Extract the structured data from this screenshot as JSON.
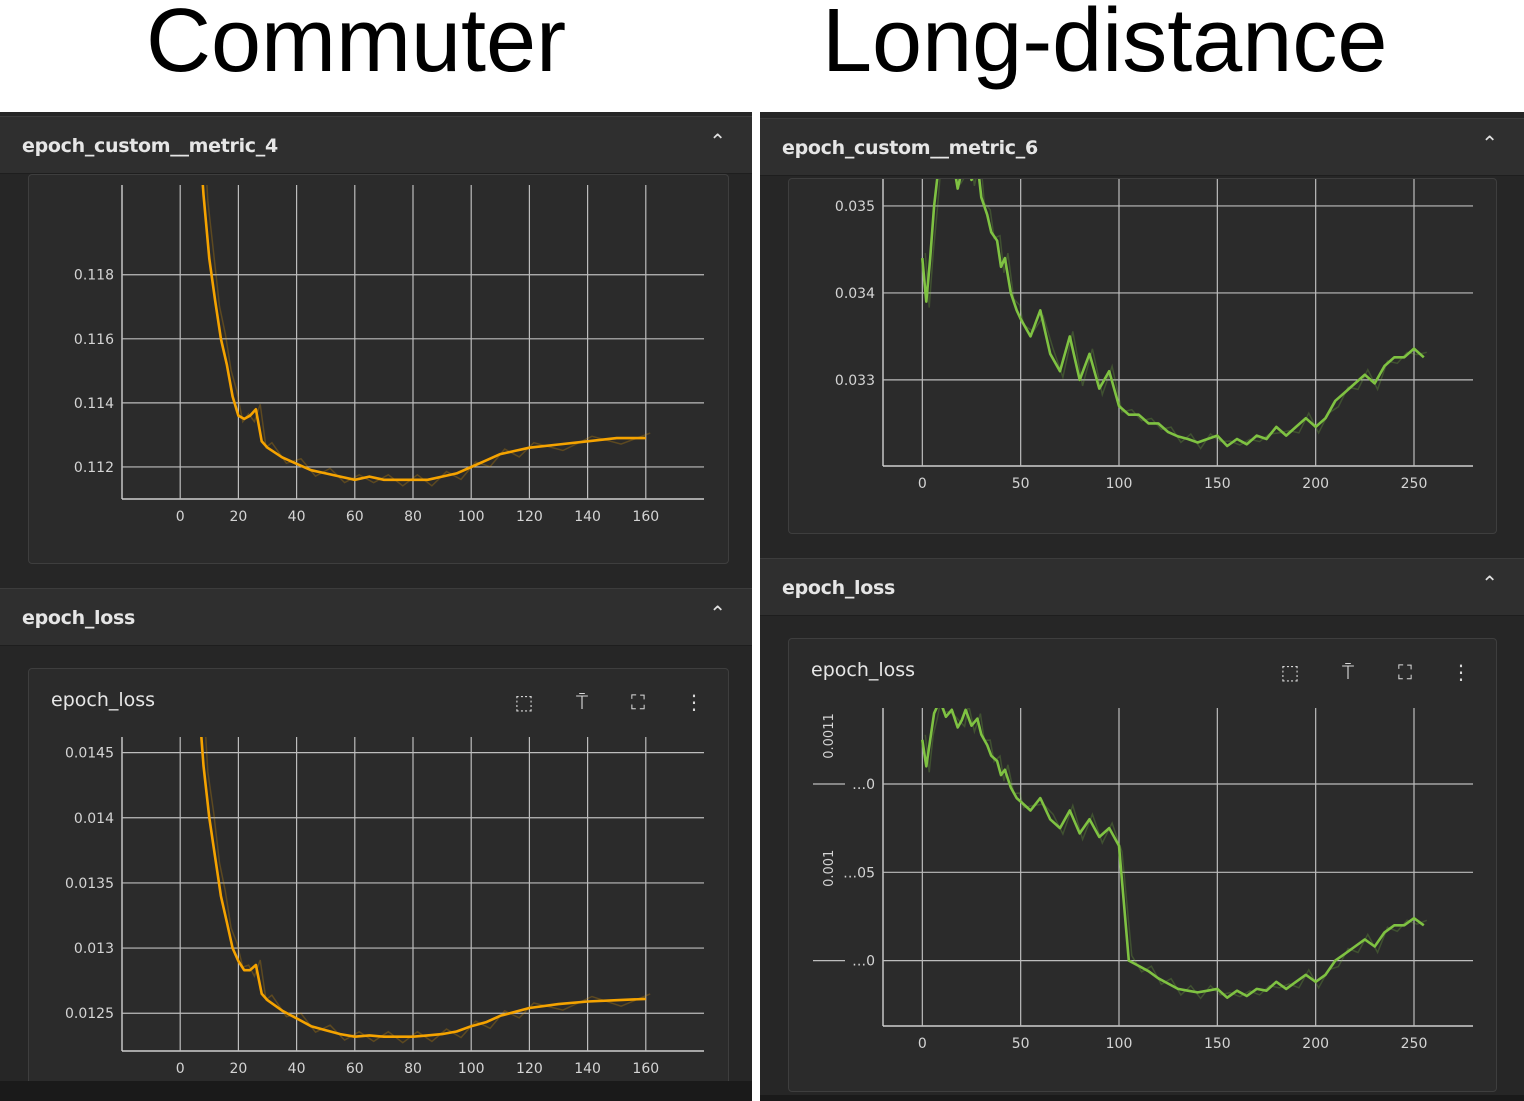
{
  "titles": {
    "left": "Commuter",
    "right": "Long-distance"
  },
  "icons": {
    "collapse": "chevron-up-icon",
    "fit": "fit-domain-icon",
    "pin": "pin-icon",
    "fullscreen": "fullscreen-icon",
    "more": "more-vert-icon"
  },
  "colors": {
    "commuter": "#f5a300",
    "long_distance": "#7fc242"
  },
  "left": {
    "metric_section": {
      "label": "epoch_custom__metric_4"
    },
    "loss_section": {
      "label": "epoch_loss"
    },
    "loss_card": {
      "title": "epoch_loss"
    }
  },
  "right": {
    "metric_section": {
      "label": "epoch_custom__metric_6"
    },
    "loss_section": {
      "label": "epoch_loss"
    },
    "loss_card": {
      "title": "epoch_loss"
    }
  },
  "chart_data": [
    {
      "type": "line",
      "id": "commuter-metric",
      "title": "epoch_custom__metric_4",
      "xlabel": "",
      "ylabel": "",
      "x_ticks": [
        "0",
        "20",
        "40",
        "60",
        "80",
        "100",
        "120",
        "140",
        "160"
      ],
      "y_ticks": [
        "0.112",
        "0.114",
        "0.116",
        "0.118"
      ],
      "xlim": [
        -20,
        180
      ],
      "ylim": [
        0.111,
        0.1208
      ],
      "color": "#f5a300",
      "grid": true,
      "series": [
        {
          "x": [
            7,
            8,
            10,
            12,
            14,
            16,
            18,
            20,
            22,
            24,
            26,
            28,
            30,
            35,
            40,
            45,
            50,
            55,
            60,
            65,
            70,
            75,
            80,
            85,
            90,
            95,
            100,
            105,
            110,
            115,
            120,
            130,
            140,
            150,
            160
          ],
          "y": [
            0.1218,
            0.1205,
            0.1185,
            0.1172,
            0.116,
            0.1152,
            0.1142,
            0.1136,
            0.1135,
            0.1136,
            0.1138,
            0.1128,
            0.1126,
            0.1123,
            0.1121,
            0.1119,
            0.1118,
            0.1117,
            0.1116,
            0.1117,
            0.1116,
            0.1116,
            0.1116,
            0.1116,
            0.1117,
            0.1118,
            0.112,
            0.1122,
            0.1124,
            0.1125,
            0.1126,
            0.1127,
            0.1128,
            0.1129,
            0.1129
          ]
        }
      ]
    },
    {
      "type": "line",
      "id": "commuter-loss",
      "title": "epoch_loss",
      "xlabel": "",
      "ylabel": "",
      "x_ticks": [
        "0",
        "20",
        "40",
        "60",
        "80",
        "100",
        "120",
        "140",
        "160"
      ],
      "y_ticks": [
        "0.0125",
        "0.013",
        "0.0135",
        "0.014",
        "0.0145"
      ],
      "xlim": [
        -20,
        180
      ],
      "ylim": [
        0.01221,
        0.01462
      ],
      "color": "#f5a300",
      "grid": true,
      "series": [
        {
          "x": [
            7,
            8,
            10,
            12,
            14,
            16,
            18,
            20,
            22,
            24,
            26,
            28,
            30,
            35,
            40,
            45,
            50,
            55,
            60,
            65,
            70,
            75,
            80,
            85,
            90,
            95,
            100,
            105,
            110,
            115,
            120,
            130,
            140,
            150,
            160
          ],
          "y": [
            0.0147,
            0.0144,
            0.014,
            0.0137,
            0.0134,
            0.0132,
            0.013,
            0.0129,
            0.01283,
            0.01283,
            0.01287,
            0.01265,
            0.0126,
            0.01252,
            0.01246,
            0.0124,
            0.01237,
            0.01234,
            0.01232,
            0.01233,
            0.01232,
            0.01232,
            0.01232,
            0.01233,
            0.01234,
            0.01236,
            0.0124,
            0.01243,
            0.01248,
            0.01251,
            0.01254,
            0.01257,
            0.01259,
            0.0126,
            0.01261
          ]
        }
      ]
    },
    {
      "type": "line",
      "id": "longdistance-metric",
      "title": "epoch_custom__metric_6",
      "xlabel": "",
      "ylabel": "",
      "x_ticks": [
        "0",
        "50",
        "100",
        "150",
        "200",
        "250"
      ],
      "y_ticks": [
        "0.033",
        "0.034",
        "0.035"
      ],
      "xlim": [
        -20,
        280
      ],
      "ylim": [
        0.03201,
        0.03531
      ],
      "color": "#7fc242",
      "grid": true,
      "series": [
        {
          "x": [
            0,
            2,
            4,
            6,
            8,
            10,
            12,
            15,
            18,
            20,
            22,
            25,
            28,
            30,
            33,
            35,
            38,
            40,
            42,
            45,
            48,
            50,
            55,
            60,
            65,
            70,
            75,
            80,
            85,
            90,
            95,
            100,
            105,
            110,
            115,
            120,
            125,
            130,
            135,
            140,
            145,
            150,
            155,
            160,
            165,
            170,
            175,
            180,
            185,
            190,
            195,
            200,
            205,
            210,
            215,
            220,
            225,
            230,
            235,
            240,
            245,
            250,
            255
          ],
          "y": [
            0.0344,
            0.0339,
            0.0344,
            0.035,
            0.0354,
            0.0357,
            0.0354,
            0.0356,
            0.0352,
            0.0354,
            0.0357,
            0.0353,
            0.0355,
            0.0351,
            0.0349,
            0.0347,
            0.0346,
            0.0343,
            0.0344,
            0.034,
            0.0338,
            0.0337,
            0.0335,
            0.0338,
            0.0333,
            0.0331,
            0.0335,
            0.033,
            0.0333,
            0.0329,
            0.0331,
            0.0327,
            0.0326,
            0.0326,
            0.0325,
            0.0325,
            0.0324,
            0.03235,
            0.03232,
            0.03228,
            0.03232,
            0.03236,
            0.03224,
            0.03232,
            0.03226,
            0.03236,
            0.03232,
            0.03246,
            0.03236,
            0.03246,
            0.03256,
            0.03246,
            0.03256,
            0.03276,
            0.03286,
            0.03296,
            0.03306,
            0.03296,
            0.03316,
            0.03326,
            0.03326,
            0.03336,
            0.03326
          ]
        }
      ]
    },
    {
      "type": "line",
      "id": "longdistance-loss",
      "title": "epoch_loss",
      "xlabel": "",
      "ylabel": "",
      "x_ticks": [
        "0",
        "50",
        "100",
        "150",
        "200",
        "250"
      ],
      "y_ticks": [
        "…0",
        "…05",
        "…0"
      ],
      "y_tick_values": [
        0.0011,
        0.00105,
        0.001
      ],
      "y_side_labels": [
        "0.0011",
        "0.001"
      ],
      "xlim": [
        -20,
        280
      ],
      "ylim": [
        0.000963,
        0.001143
      ],
      "color": "#7fc242",
      "grid": true,
      "series": [
        {
          "x": [
            0,
            2,
            4,
            6,
            8,
            10,
            12,
            15,
            18,
            20,
            22,
            25,
            28,
            30,
            33,
            35,
            38,
            40,
            42,
            45,
            48,
            50,
            55,
            60,
            65,
            70,
            75,
            80,
            85,
            90,
            95,
            100,
            105,
            110,
            115,
            120,
            125,
            130,
            135,
            140,
            145,
            150,
            155,
            160,
            165,
            170,
            175,
            180,
            185,
            190,
            195,
            200,
            205,
            210,
            215,
            220,
            225,
            230,
            235,
            240,
            245,
            250,
            255
          ],
          "y": [
            0.001125,
            0.00111,
            0.001125,
            0.00114,
            0.001145,
            0.001144,
            0.001138,
            0.001142,
            0.001132,
            0.001136,
            0.001142,
            0.001133,
            0.001137,
            0.001128,
            0.001122,
            0.001116,
            0.001113,
            0.001105,
            0.001108,
            0.001098,
            0.001092,
            0.00109,
            0.001085,
            0.001092,
            0.00108,
            0.001075,
            0.001085,
            0.001072,
            0.00108,
            0.00107,
            0.001075,
            0.001065,
            0.001,
            0.000997,
            0.000994,
            0.00099,
            0.000987,
            0.000984,
            0.000983,
            0.000982,
            0.000983,
            0.000984,
            0.000979,
            0.000983,
            0.00098,
            0.000984,
            0.000983,
            0.000988,
            0.000984,
            0.000988,
            0.000992,
            0.000988,
            0.000992,
            0.001,
            0.001004,
            0.001008,
            0.001012,
            0.001008,
            0.001016,
            0.00102,
            0.00102,
            0.001024,
            0.00102
          ]
        }
      ]
    }
  ]
}
